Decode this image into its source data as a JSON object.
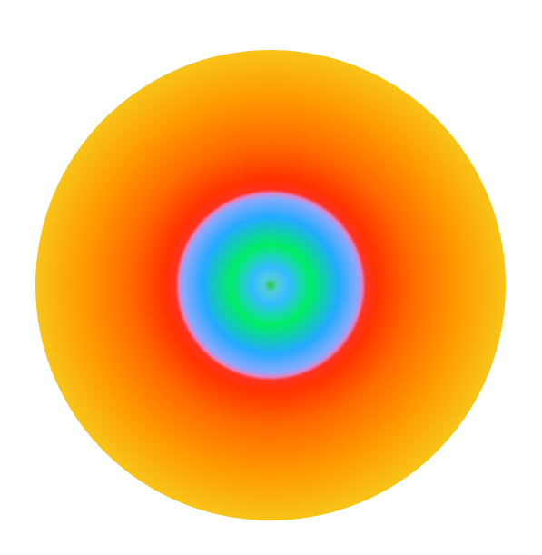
{
  "chart_data": {
    "type": "radial_gradient",
    "stops": [
      0,
      0.03,
      0.08,
      0.17,
      0.29,
      0.37,
      0.39,
      0.405,
      0.45,
      0.6,
      0.8,
      1
    ],
    "colors": [
      "#22cc44",
      "#55ccdd",
      "#33bbff",
      "#00ee66",
      "#22aaff",
      "#88aaff",
      "#dd88cc",
      "#ff3322",
      "#ff3300",
      "#ff6a00",
      "#ff9a00",
      "#f8c418"
    ]
  }
}
